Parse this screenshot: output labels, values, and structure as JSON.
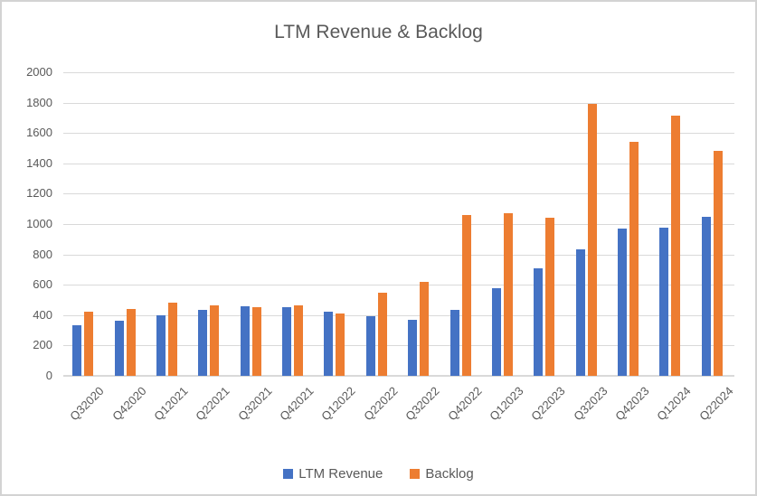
{
  "chart_data": {
    "type": "bar",
    "title": "LTM Revenue & Backlog",
    "categories": [
      "Q32020",
      "Q42020",
      "Q12021",
      "Q22021",
      "Q32021",
      "Q42021",
      "Q12022",
      "Q22022",
      "Q32022",
      "Q42022",
      "Q12023",
      "Q22023",
      "Q32023",
      "Q42023",
      "Q12024",
      "Q22024"
    ],
    "series": [
      {
        "name": "LTM Revenue",
        "color": "#4472C4",
        "values": [
          335,
          365,
          400,
          435,
          460,
          455,
          420,
          390,
          370,
          435,
          575,
          710,
          835,
          970,
          975,
          1050
        ]
      },
      {
        "name": "Backlog",
        "color": "#ED7D31",
        "values": [
          420,
          440,
          485,
          465,
          450,
          465,
          410,
          545,
          620,
          1060,
          1070,
          1040,
          1790,
          1540,
          1715,
          1480
        ]
      }
    ],
    "ylim": [
      0,
      2000
    ],
    "ytick_step": 200,
    "ytick_labels": [
      "0",
      "200",
      "400",
      "600",
      "800",
      "1000",
      "1200",
      "1400",
      "1600",
      "1800",
      "2000"
    ],
    "grid": true,
    "legend_position": "bottom"
  },
  "colors": {
    "text": "#595959",
    "gridline": "#D9D9D9",
    "axis_line": "#D9D9D9",
    "frame_border": "#D3D3D3",
    "background": "#FFFFFF"
  }
}
